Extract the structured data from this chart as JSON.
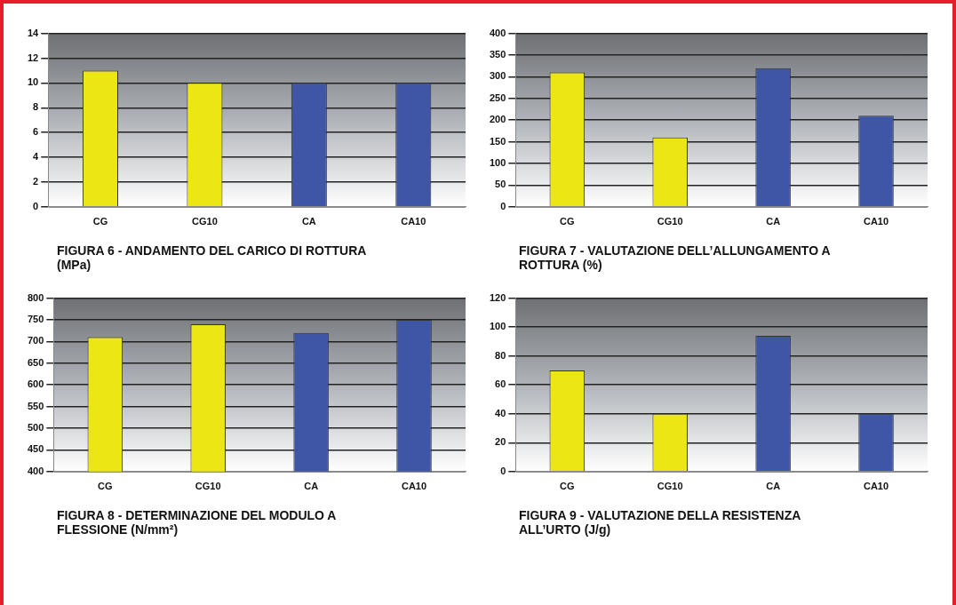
{
  "chart_data": [
    {
      "type": "bar",
      "title": "FIGURA 6 - ANDAMENTO DEL CARICO DI ROTTURA (MPa)",
      "categories": [
        "CG",
        "CG10",
        "CA",
        "CA10"
      ],
      "values": [
        11,
        10,
        10,
        10
      ],
      "colors": [
        "#ece614",
        "#ece614",
        "#3f55a6",
        "#3f55a6"
      ],
      "ylim": [
        0,
        14
      ],
      "yticks": [
        0,
        2,
        4,
        6,
        8,
        10,
        12,
        14
      ],
      "grid": "y"
    },
    {
      "type": "bar",
      "title": "FIGURA 7 - VALUTAZIONE DELL’ALLUNGAMENTO A ROTTURA (%)",
      "categories": [
        "CG",
        "CG10",
        "CA",
        "CA10"
      ],
      "values": [
        310,
        160,
        320,
        210
      ],
      "colors": [
        "#ece614",
        "#ece614",
        "#3f55a6",
        "#3f55a6"
      ],
      "ylim": [
        0,
        400
      ],
      "yticks": [
        0,
        50,
        100,
        150,
        200,
        250,
        300,
        350,
        400
      ],
      "grid": "y"
    },
    {
      "type": "bar",
      "title": "FIGURA 8 - DETERMINAZIONE DEL MODULO A FLESSIONE (N/mm²)",
      "categories": [
        "CG",
        "CG10",
        "CA",
        "CA10"
      ],
      "values": [
        710,
        740,
        720,
        750
      ],
      "colors": [
        "#ece614",
        "#ece614",
        "#3f55a6",
        "#3f55a6"
      ],
      "ylim": [
        400,
        800
      ],
      "yticks": [
        400,
        450,
        500,
        550,
        600,
        650,
        700,
        750,
        800
      ],
      "grid": "y"
    },
    {
      "type": "bar",
      "title": "FIGURA 9 - VALUTAZIONE DELLA RESISTENZA ALL’URTO (J/g)",
      "categories": [
        "CG",
        "CG10",
        "CA",
        "CA10"
      ],
      "values": [
        70,
        40,
        94,
        40
      ],
      "colors": [
        "#ece614",
        "#ece614",
        "#3f55a6",
        "#3f55a6"
      ],
      "ylim": [
        0,
        120
      ],
      "yticks": [
        0,
        20,
        40,
        60,
        80,
        100,
        120
      ],
      "grid": "y"
    }
  ]
}
